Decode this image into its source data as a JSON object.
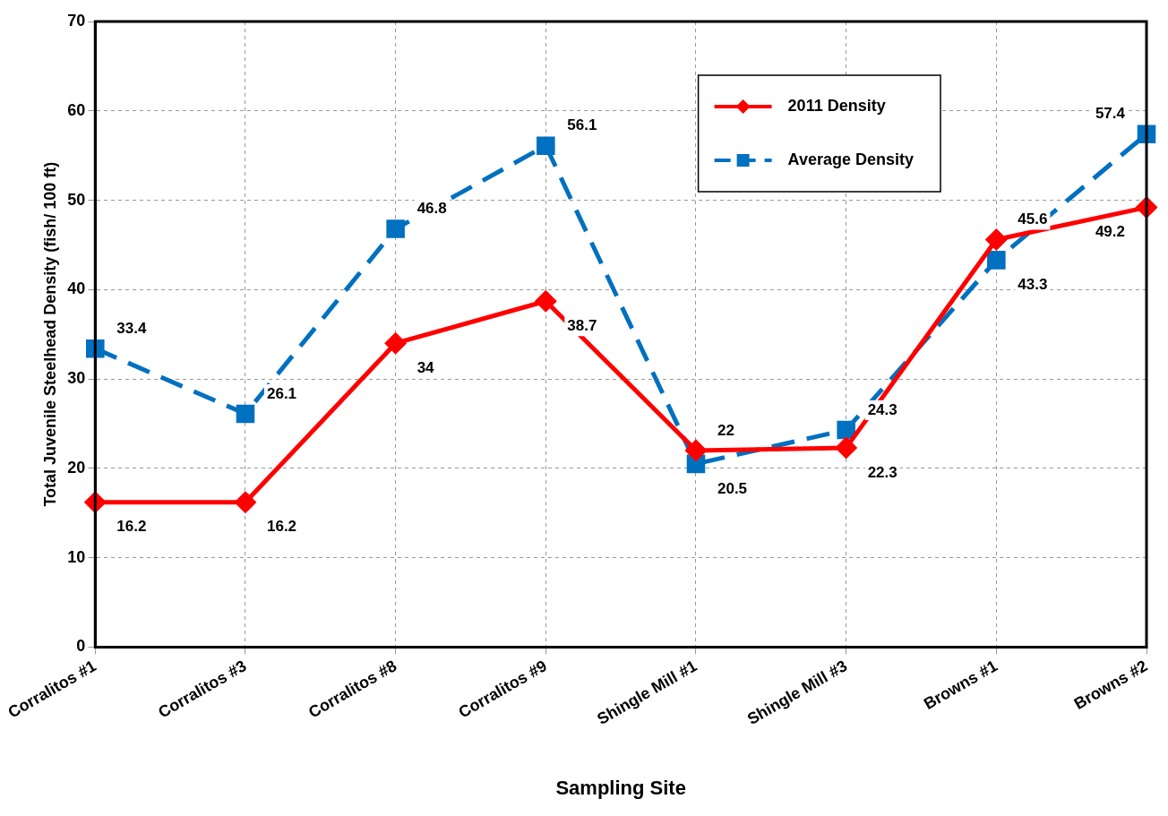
{
  "chart_data": {
    "type": "line",
    "xlabel": "Sampling Site",
    "ylabel": "Total Juvenile Steelhead Density (fish/ 100 ft)",
    "categories": [
      "Corralitos #1",
      "Corralitos #3",
      "Corralitos #8",
      "Corralitos #9",
      "Shingle Mill #1",
      "Shingle Mill #3",
      "Browns #1",
      "Browns #2"
    ],
    "series": [
      {
        "name": "2011 Density",
        "color": "#ff0000",
        "values": [
          16.2,
          16.2,
          34,
          38.7,
          22,
          22.3,
          45.6,
          49.2
        ],
        "marker": "diamond",
        "line_style": "solid"
      },
      {
        "name": "Average Density",
        "color": "#0070c0",
        "values": [
          33.4,
          26.1,
          46.8,
          56.1,
          20.5,
          24.3,
          43.3,
          57.4
        ],
        "marker": "square",
        "line_style": "dashed"
      }
    ],
    "ylim": [
      0,
      70
    ],
    "yticks": [
      0,
      10,
      20,
      30,
      40,
      50,
      60,
      70
    ],
    "grid": true,
    "legend": "top right",
    "data_labels": true
  }
}
